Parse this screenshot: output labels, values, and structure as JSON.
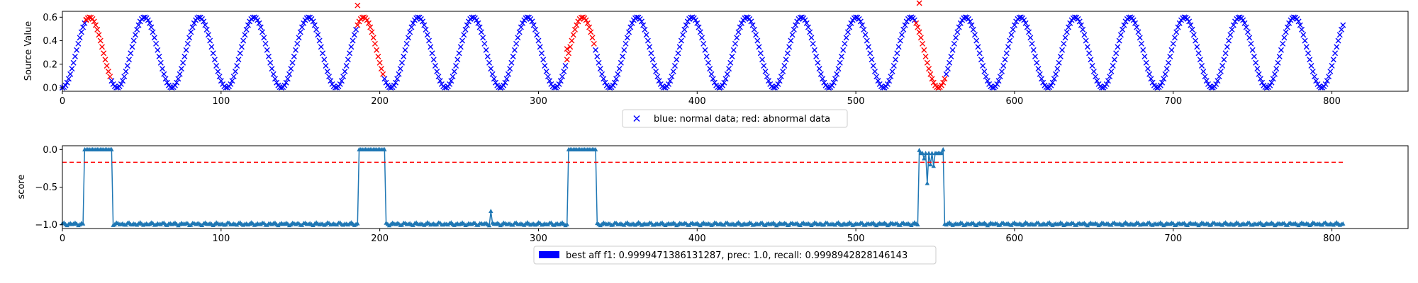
{
  "colors": {
    "normal": "#0000ff",
    "abnormal": "#ff0000",
    "score": "#1f77b4",
    "threshold": "#ff0000",
    "legend_patch": "#0000ff"
  },
  "chart_data": [
    {
      "type": "scatter",
      "ylabel": "Source Value",
      "xlabel": "",
      "xlim": [
        0,
        848
      ],
      "ylim": [
        -0.03,
        0.65
      ],
      "xticks": [
        0,
        100,
        200,
        300,
        400,
        500,
        600,
        700,
        800
      ],
      "yticks": [
        0.0,
        0.2,
        0.4,
        0.6
      ],
      "xtick_labels": [
        "0",
        "100",
        "200",
        "300",
        "400",
        "500",
        "600",
        "700",
        "800"
      ],
      "ytick_labels": [
        "0.0",
        "0.2",
        "0.4",
        "0.6"
      ],
      "series_signal": {
        "n_points": 808,
        "period": 34.5,
        "phase": 17.25,
        "amplitude": 0.3,
        "offset": 0.3,
        "marker": "x"
      },
      "abnormal_ranges": [
        [
          15,
          30
        ],
        [
          186,
          202
        ],
        [
          318,
          335
        ],
        [
          538,
          556
        ]
      ],
      "outliers": [
        {
          "x": 15,
          "y": 0.58
        },
        {
          "x": 186,
          "y": 0.7
        },
        {
          "x": 318,
          "y": 0.33
        },
        {
          "x": 540,
          "y": 0.72
        }
      ],
      "legend": {
        "label": "blue: normal data; red: abnormal data",
        "position": "lower center"
      }
    },
    {
      "type": "line",
      "ylabel": "score",
      "xlabel": "",
      "xlim": [
        0,
        848
      ],
      "ylim": [
        -1.05,
        0.05
      ],
      "xticks": [
        0,
        100,
        200,
        300,
        400,
        500,
        600,
        700,
        800
      ],
      "yticks": [
        0.0,
        -0.5,
        -1.0
      ],
      "xtick_labels": [
        "0",
        "100",
        "200",
        "300",
        "400",
        "500",
        "600",
        "700",
        "800"
      ],
      "ytick_labels": [
        "0.0",
        "−0.5",
        "−1.0"
      ],
      "baseline": -0.99,
      "high_ranges": [
        [
          14,
          31
        ],
        [
          187,
          203
        ],
        [
          319,
          336
        ]
      ],
      "spikes": [
        {
          "x": 270,
          "y": -0.82
        },
        {
          "x": 540,
          "y": -0.01
        },
        {
          "x": 543,
          "y": -0.12
        },
        {
          "x": 545,
          "y": -0.45
        },
        {
          "x": 547,
          "y": -0.2
        },
        {
          "x": 549,
          "y": -0.22
        },
        {
          "x": 552,
          "y": -0.05
        },
        {
          "x": 555,
          "y": 0.0
        }
      ],
      "threshold": {
        "y": -0.17,
        "x_start": 0,
        "x_end": 807
      },
      "marker": "^",
      "legend": {
        "label": "best aff f1: 0.9999471386131287, prec: 1.0, recall: 0.9998942828146143",
        "position": "lower center"
      }
    }
  ]
}
